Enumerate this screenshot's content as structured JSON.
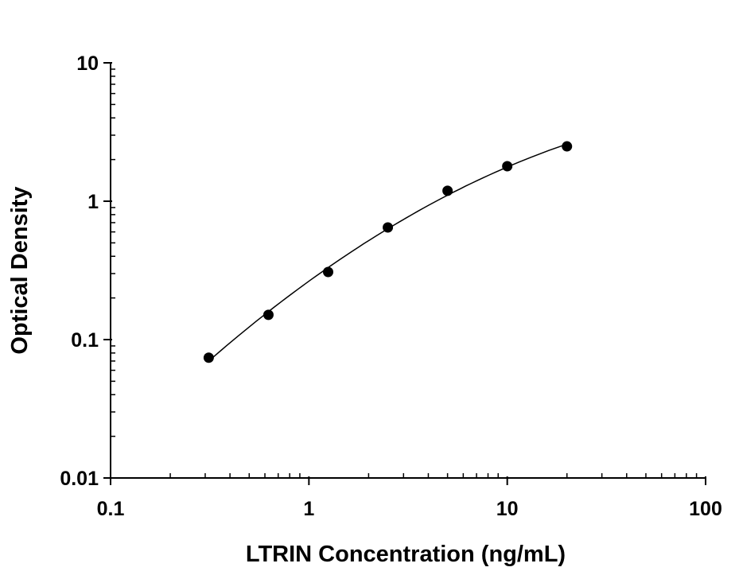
{
  "chart_data": {
    "type": "scatter",
    "title": "",
    "xlabel": "LTRIN Concentration (ng/mL)",
    "ylabel": "Optical Density",
    "xscale": "log",
    "yscale": "log",
    "xlim": [
      0.1,
      100
    ],
    "ylim": [
      0.01,
      10
    ],
    "xticks": [
      "0.1",
      "1",
      "10",
      "100"
    ],
    "yticks": [
      "0.01",
      "0.1",
      "1",
      "10"
    ],
    "grid": false,
    "legend": "none",
    "fit_line": "smooth curve through points",
    "series": [
      {
        "x": [
          0.3125,
          0.625,
          1.25,
          2.5,
          5,
          10,
          20
        ],
        "y": [
          0.074,
          0.151,
          0.308,
          0.646,
          1.19,
          1.79,
          2.49
        ]
      }
    ],
    "colors": {
      "marker": "#000000",
      "line": "#000000"
    }
  }
}
